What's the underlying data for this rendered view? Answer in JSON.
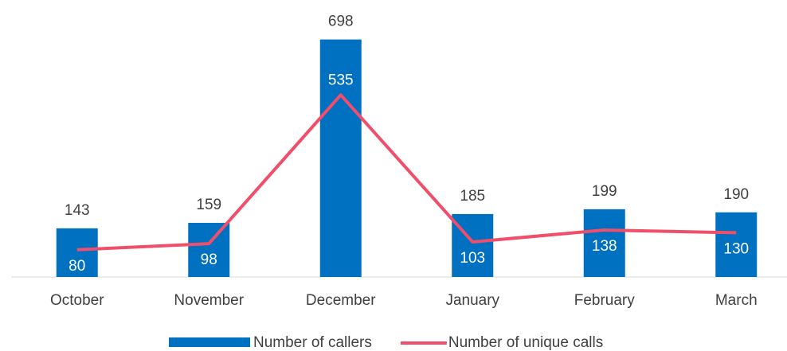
{
  "chart_data": {
    "type": "bar-line",
    "categories": [
      "October",
      "November",
      "December",
      "January",
      "February",
      "March"
    ],
    "series": [
      {
        "name": "Number of callers",
        "type": "bar",
        "color": "#0070c0",
        "values": [
          143,
          159,
          698,
          185,
          199,
          190
        ]
      },
      {
        "name": "Number of unique calls",
        "type": "line",
        "color": "#ef4f6b",
        "values": [
          80,
          98,
          535,
          103,
          138,
          130
        ]
      }
    ],
    "ylim": [
      0,
      800
    ],
    "legend": "bottom"
  }
}
